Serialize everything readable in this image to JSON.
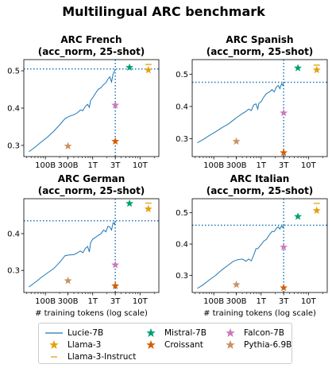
{
  "figure": {
    "title": "Multilingual ARC benchmark"
  },
  "colors": {
    "Lucie-7B": "#1f77b4",
    "Llama-3": "#e5a00d",
    "Llama-3-Instruct": "#e5a00d",
    "Mistral-7B": "#029e73",
    "Croissant": "#d55e00",
    "Falcon-7B": "#cc78bc",
    "Pythia-6.9B": "#ca9161"
  },
  "legend": [
    "Lucie-7B",
    "Llama-3",
    "Llama-3-Instruct",
    "Mistral-7B",
    "Croissant",
    "Falcon-7B",
    "Pythia-6.9B"
  ],
  "chart_data": [
    {
      "type": "line",
      "title": "ARC French",
      "subtitle": "(acc_norm, 25-shot)",
      "xlabel": "",
      "xscale": "log",
      "xlim": [
        35,
        25000
      ],
      "ylim": [
        0.27,
        0.53
      ],
      "xticks": [
        {
          "v": 100,
          "label": "100B"
        },
        {
          "v": 300,
          "label": "300B"
        },
        {
          "v": 1000,
          "label": "1T"
        },
        {
          "v": 3000,
          "label": "3T"
        },
        {
          "v": 10000,
          "label": "10T"
        }
      ],
      "yticks": [
        0.3,
        0.4,
        0.5
      ],
      "reference": {
        "x": 3000,
        "y": 0.505
      },
      "series": [
        {
          "name": "Lucie-7B",
          "marker": "line",
          "x": [
            45,
            60,
            80,
            110,
            150,
            200,
            260,
            320,
            400,
            480,
            550,
            620,
            700,
            780,
            850,
            900,
            1000,
            1150,
            1300,
            1500,
            1700,
            1900,
            2100,
            2300,
            2500,
            2700,
            2900,
            3000
          ],
          "y": [
            0.283,
            0.295,
            0.308,
            0.322,
            0.338,
            0.355,
            0.372,
            0.378,
            0.382,
            0.388,
            0.395,
            0.393,
            0.405,
            0.41,
            0.402,
            0.42,
            0.428,
            0.44,
            0.45,
            0.455,
            0.463,
            0.468,
            0.478,
            0.484,
            0.47,
            0.492,
            0.5,
            0.505
          ]
        },
        {
          "name": "Llama-3",
          "marker": "star",
          "x": [
            15000
          ],
          "y": [
            0.502
          ]
        },
        {
          "name": "Llama-3-Instruct",
          "marker": "hline",
          "x": [
            15000
          ],
          "y": [
            0.517
          ]
        },
        {
          "name": "Mistral-7B",
          "marker": "star",
          "x": [
            6000
          ],
          "y": [
            0.509
          ]
        },
        {
          "name": "Croissant",
          "marker": "star",
          "x": [
            3000
          ],
          "y": [
            0.311
          ]
        },
        {
          "name": "Falcon-7B",
          "marker": "star",
          "x": [
            3000
          ],
          "y": [
            0.408
          ]
        },
        {
          "name": "Pythia-6.9B",
          "marker": "star",
          "x": [
            300
          ],
          "y": [
            0.298
          ]
        }
      ]
    },
    {
      "type": "line",
      "title": "ARC Spanish",
      "subtitle": "(acc_norm, 25-shot)",
      "xlabel": "",
      "xscale": "log",
      "xlim": [
        35,
        25000
      ],
      "ylim": [
        0.245,
        0.545
      ],
      "xticks": [
        {
          "v": 100,
          "label": "100B"
        },
        {
          "v": 300,
          "label": "300B"
        },
        {
          "v": 1000,
          "label": "1T"
        },
        {
          "v": 3000,
          "label": "3T"
        },
        {
          "v": 10000,
          "label": "10T"
        }
      ],
      "yticks": [
        0.3,
        0.4,
        0.5
      ],
      "reference": {
        "x": 3000,
        "y": 0.475
      },
      "series": [
        {
          "name": "Lucie-7B",
          "marker": "line",
          "x": [
            45,
            60,
            80,
            110,
            150,
            200,
            260,
            320,
            400,
            480,
            550,
            620,
            700,
            780,
            850,
            900,
            1000,
            1150,
            1300,
            1500,
            1700,
            1900,
            2100,
            2300,
            2500,
            2700,
            2900,
            3000
          ],
          "y": [
            0.288,
            0.298,
            0.31,
            0.322,
            0.335,
            0.345,
            0.358,
            0.368,
            0.378,
            0.385,
            0.392,
            0.387,
            0.405,
            0.408,
            0.392,
            0.41,
            0.415,
            0.43,
            0.44,
            0.445,
            0.452,
            0.445,
            0.46,
            0.465,
            0.455,
            0.47,
            0.465,
            0.475
          ]
        },
        {
          "name": "Llama-3",
          "marker": "star",
          "x": [
            15000
          ],
          "y": [
            0.513
          ]
        },
        {
          "name": "Llama-3-Instruct",
          "marker": "hline",
          "x": [
            15000
          ],
          "y": [
            0.528
          ]
        },
        {
          "name": "Mistral-7B",
          "marker": "star",
          "x": [
            6000
          ],
          "y": [
            0.519
          ]
        },
        {
          "name": "Croissant",
          "marker": "star",
          "x": [
            3000
          ],
          "y": [
            0.257
          ]
        },
        {
          "name": "Falcon-7B",
          "marker": "star",
          "x": [
            3000
          ],
          "y": [
            0.38
          ]
        },
        {
          "name": "Pythia-6.9B",
          "marker": "star",
          "x": [
            300
          ],
          "y": [
            0.292
          ]
        }
      ]
    },
    {
      "type": "line",
      "title": "ARC German",
      "subtitle": "(acc_norm, 25-shot)",
      "xlabel": "# training tokens (log scale)",
      "xscale": "log",
      "xlim": [
        35,
        25000
      ],
      "ylim": [
        0.24,
        0.495
      ],
      "xticks": [
        {
          "v": 100,
          "label": "100B"
        },
        {
          "v": 300,
          "label": "300B"
        },
        {
          "v": 1000,
          "label": "1T"
        },
        {
          "v": 3000,
          "label": "3T"
        },
        {
          "v": 10000,
          "label": "10T"
        }
      ],
      "yticks": [
        0.3,
        0.4
      ],
      "reference": {
        "x": 3000,
        "y": 0.435
      },
      "series": [
        {
          "name": "Lucie-7B",
          "marker": "line",
          "x": [
            45,
            60,
            80,
            110,
            150,
            200,
            260,
            320,
            400,
            480,
            550,
            620,
            700,
            780,
            850,
            900,
            1000,
            1150,
            1300,
            1500,
            1700,
            1900,
            2100,
            2300,
            2500,
            2700,
            2900,
            3000
          ],
          "y": [
            0.255,
            0.267,
            0.28,
            0.293,
            0.305,
            0.322,
            0.34,
            0.342,
            0.343,
            0.348,
            0.353,
            0.348,
            0.36,
            0.365,
            0.35,
            0.375,
            0.385,
            0.39,
            0.395,
            0.4,
            0.41,
            0.405,
            0.42,
            0.418,
            0.41,
            0.43,
            0.425,
            0.435
          ]
        },
        {
          "name": "Llama-3",
          "marker": "star",
          "x": [
            15000
          ],
          "y": [
            0.467
          ]
        },
        {
          "name": "Llama-3-Instruct",
          "marker": "hline",
          "x": [
            15000
          ],
          "y": [
            0.483
          ]
        },
        {
          "name": "Mistral-7B",
          "marker": "star",
          "x": [
            6000
          ],
          "y": [
            0.482
          ]
        },
        {
          "name": "Croissant",
          "marker": "star",
          "x": [
            3000
          ],
          "y": [
            0.258
          ]
        },
        {
          "name": "Falcon-7B",
          "marker": "star",
          "x": [
            3000
          ],
          "y": [
            0.315
          ]
        },
        {
          "name": "Pythia-6.9B",
          "marker": "star",
          "x": [
            300
          ],
          "y": [
            0.272
          ]
        }
      ]
    },
    {
      "type": "line",
      "title": "ARC Italian",
      "subtitle": "(acc_norm, 25-shot)",
      "xlabel": "# training tokens (log scale)",
      "xscale": "log",
      "xlim": [
        35,
        25000
      ],
      "ylim": [
        0.245,
        0.545
      ],
      "xticks": [
        {
          "v": 100,
          "label": "100B"
        },
        {
          "v": 300,
          "label": "300B"
        },
        {
          "v": 1000,
          "label": "1T"
        },
        {
          "v": 3000,
          "label": "3T"
        },
        {
          "v": 10000,
          "label": "10T"
        }
      ],
      "yticks": [
        0.3,
        0.4,
        0.5
      ],
      "reference": {
        "x": 3000,
        "y": 0.46
      },
      "series": [
        {
          "name": "Lucie-7B",
          "marker": "line",
          "x": [
            45,
            60,
            80,
            110,
            150,
            200,
            260,
            320,
            400,
            480,
            550,
            620,
            700,
            780,
            850,
            900,
            1000,
            1150,
            1300,
            1500,
            1700,
            1900,
            2100,
            2300,
            2500,
            2700,
            2900,
            3000
          ],
          "y": [
            0.258,
            0.27,
            0.285,
            0.3,
            0.318,
            0.332,
            0.345,
            0.35,
            0.352,
            0.345,
            0.352,
            0.346,
            0.365,
            0.385,
            0.385,
            0.39,
            0.398,
            0.41,
            0.415,
            0.43,
            0.44,
            0.44,
            0.45,
            0.455,
            0.448,
            0.458,
            0.452,
            0.46
          ]
        },
        {
          "name": "Llama-3",
          "marker": "star",
          "x": [
            15000
          ],
          "y": [
            0.507
          ]
        },
        {
          "name": "Llama-3-Instruct",
          "marker": "hline",
          "x": [
            15000
          ],
          "y": [
            0.53
          ]
        },
        {
          "name": "Mistral-7B",
          "marker": "star",
          "x": [
            6000
          ],
          "y": [
            0.488
          ]
        },
        {
          "name": "Croissant",
          "marker": "star",
          "x": [
            3000
          ],
          "y": [
            0.26
          ]
        },
        {
          "name": "Falcon-7B",
          "marker": "star",
          "x": [
            3000
          ],
          "y": [
            0.39
          ]
        },
        {
          "name": "Pythia-6.9B",
          "marker": "star",
          "x": [
            300
          ],
          "y": [
            0.27
          ]
        }
      ]
    }
  ]
}
